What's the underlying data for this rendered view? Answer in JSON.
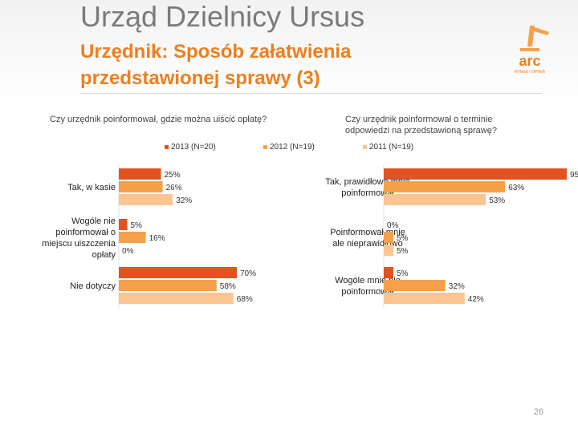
{
  "header": {
    "title": "Urząd Dzielnicy Ursus",
    "subtitle": "Urzędnik: Sposób załatwienia przedstawionej sprawy (3)"
  },
  "logo": {
    "text": "arc",
    "tagline": "RYNEK I OPINIA"
  },
  "colors": {
    "s2013": "#e2531f",
    "s2012": "#f5a04a",
    "s2011": "#fac591",
    "accent": "#f07e1c"
  },
  "legend": [
    {
      "label": "2013 (N=20)",
      "color": "#e2531f"
    },
    {
      "label": "2012 (N=19)",
      "color": "#f5a04a"
    },
    {
      "label": "2011 (N=19)",
      "color": "#fac591"
    }
  ],
  "chart_data": [
    {
      "type": "bar",
      "orientation": "horizontal",
      "title": "Czy urzędnik poinformował, gdzie można uiścić opłatę?",
      "categories": [
        "Tak, w kasie",
        "W ogóle nie poinformował o miejscu uiszczenia opłaty",
        "Nie dotyczy"
      ],
      "category_labels": [
        "Tak, w kasie",
        "Wogóle nie poinformował o miejscu uiszczenia opłaty",
        "Nie dotyczy"
      ],
      "series": [
        {
          "name": "2013 (N=20)",
          "values": [
            25,
            5,
            70
          ]
        },
        {
          "name": "2012 (N=19)",
          "values": [
            26,
            16,
            58
          ]
        },
        {
          "name": "2011 (N=19)",
          "values": [
            32,
            0,
            68
          ]
        }
      ],
      "value_suffix": "%",
      "xlim": [
        0,
        100
      ]
    },
    {
      "type": "bar",
      "orientation": "horizontal",
      "title": "Czy urzędnik poinformował o terminie odpowiedzi na przedstawioną sprawę?",
      "categories": [
        "Tak, prawidłowo mnie poinformował",
        "Poinformował mnie ale nieprawidłowo",
        "Wogóle mnie nie poinformował"
      ],
      "series": [
        {
          "name": "2013 (N=20)",
          "values": [
            95,
            0,
            5
          ]
        },
        {
          "name": "2012 (N=19)",
          "values": [
            63,
            5,
            32
          ]
        },
        {
          "name": "2011 (N=19)",
          "values": [
            53,
            5,
            42
          ]
        }
      ],
      "value_suffix": "%",
      "xlim": [
        0,
        100
      ]
    }
  ],
  "page_number": "26"
}
